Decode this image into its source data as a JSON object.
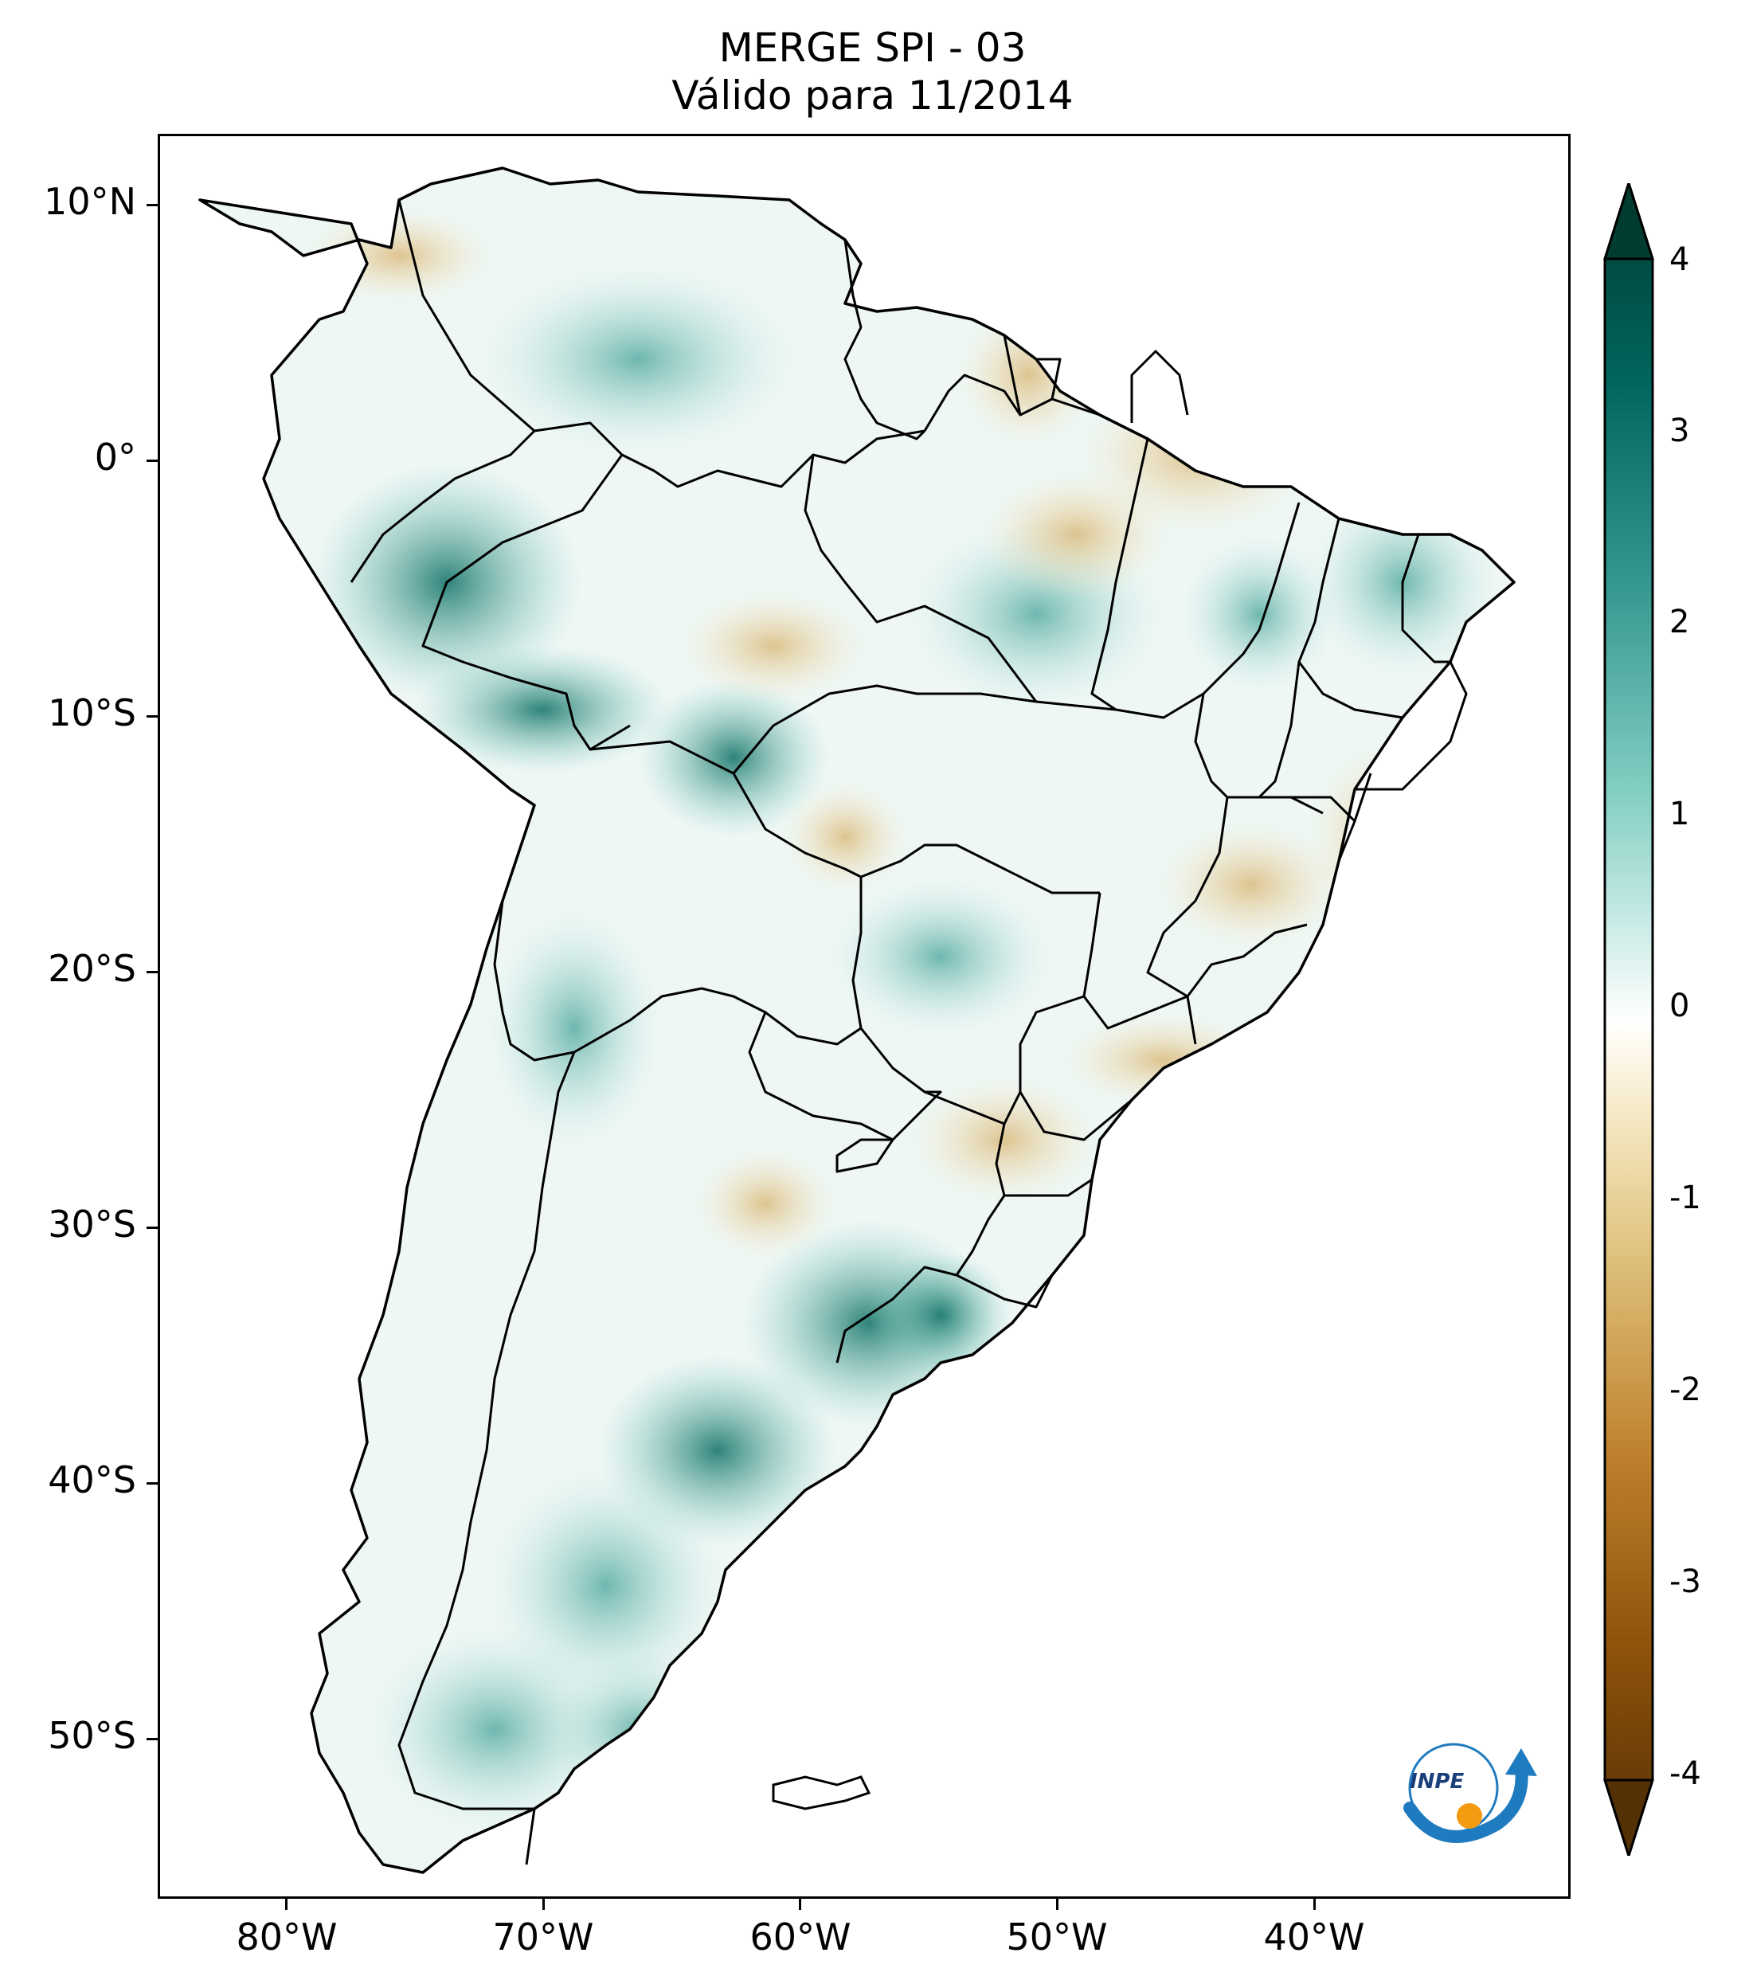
{
  "title": {
    "line1": "MERGE   SPI - 03",
    "line2": "Válido para 11/2014"
  },
  "map": {
    "type": "choropleth",
    "variable": "SPI - 03",
    "lon_range": [
      -85,
      -30
    ],
    "lat_range": [
      -56,
      13
    ],
    "lat_ticks": [
      "10°N",
      "0°",
      "10°S",
      "20°S",
      "30°S",
      "40°S",
      "50°S"
    ],
    "lon_ticks": [
      "80°W",
      "70°W",
      "60°W",
      "50°W",
      "40°W"
    ]
  },
  "colorbar": {
    "ticks": [
      "4",
      "3",
      "2",
      "1",
      "0",
      "-1",
      "-2",
      "-3",
      "-4"
    ],
    "range": [
      -4,
      4
    ],
    "colors": [
      "#543005",
      "#8c510a",
      "#bf812d",
      "#dfc27d",
      "#f6e8c3",
      "#ffffff",
      "#c7eae5",
      "#80cdc1",
      "#35978f",
      "#01665e",
      "#003c30"
    ]
  },
  "logo": {
    "text": "INPE",
    "icon": "inpe-logo-icon"
  }
}
